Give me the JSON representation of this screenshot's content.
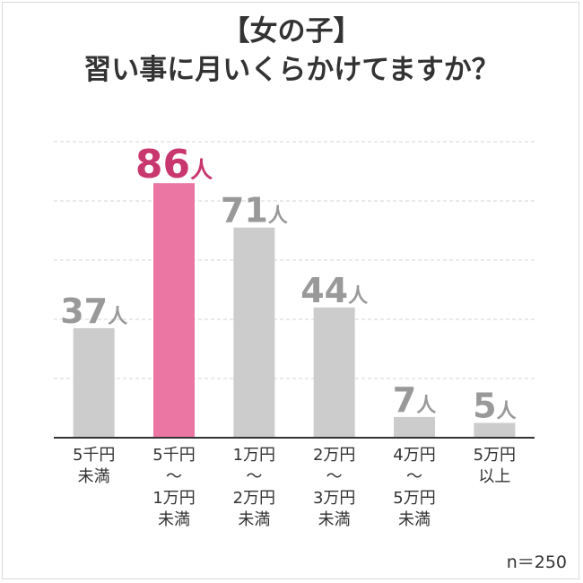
{
  "title": {
    "line1": "【女の子】",
    "line2": "習い事に月いくらかけてますか？"
  },
  "sample_note": "n＝250",
  "colors": {
    "highlight": "#eb76a3",
    "highlight_label": "#c9376f",
    "bar": "#cccccc",
    "label": "#999999",
    "axis": "#333333",
    "grid": "#d5d5d5"
  },
  "chart_data": {
    "type": "bar",
    "title": "【女の子】習い事に月いくらかけてますか？",
    "categories": [
      [
        "5千円",
        "未満"
      ],
      [
        "5千円",
        "〜",
        "1万円",
        "未満"
      ],
      [
        "1万円",
        "〜",
        "2万円",
        "未満"
      ],
      [
        "2万円",
        "〜",
        "3万円",
        "未満"
      ],
      [
        "4万円",
        "〜",
        "5万円",
        "未満"
      ],
      [
        "5万円",
        "以上"
      ]
    ],
    "values": [
      37,
      86,
      71,
      44,
      7,
      5
    ],
    "value_unit": "人",
    "highlight_index": 1,
    "ylim": [
      0,
      100
    ],
    "grid": true,
    "gridlines": [
      20,
      40,
      60,
      80,
      100
    ]
  }
}
